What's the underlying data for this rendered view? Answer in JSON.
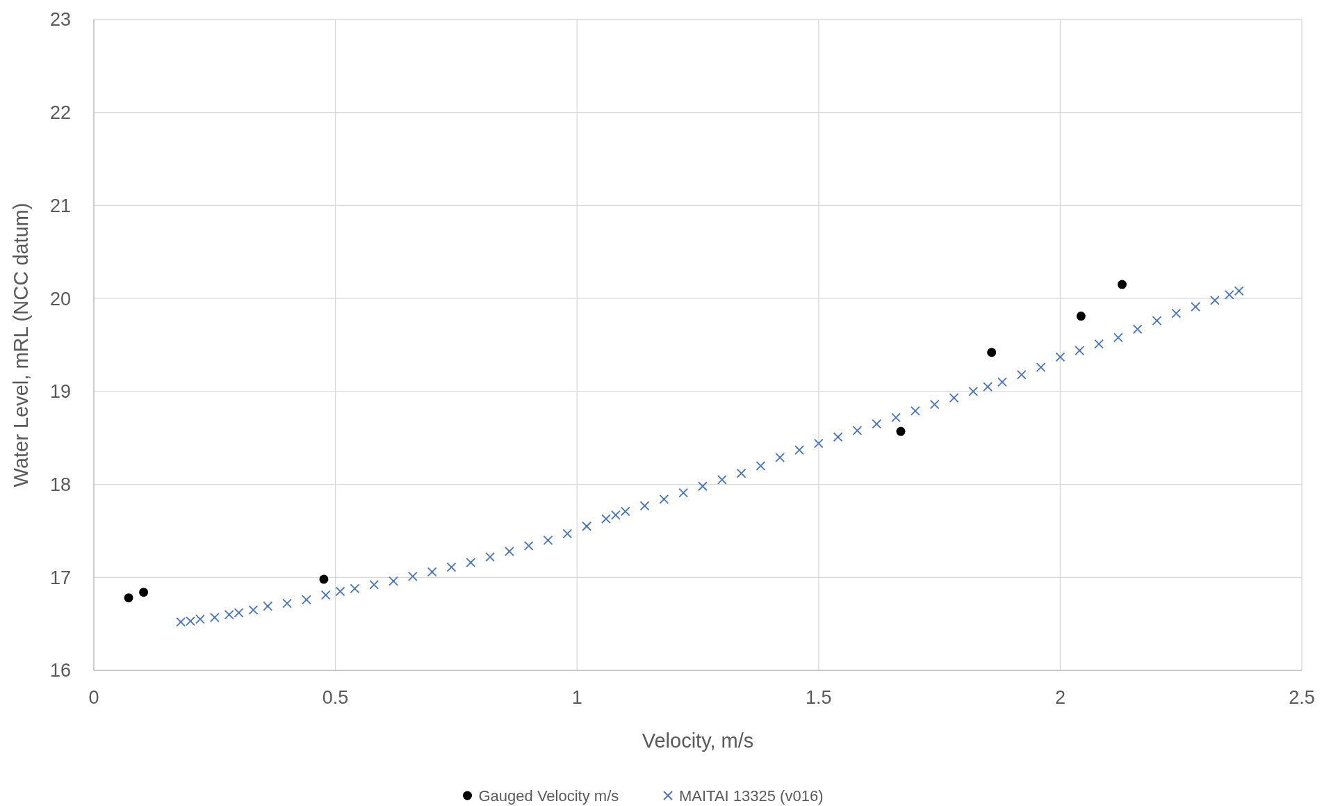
{
  "chart_data": {
    "type": "scatter",
    "xlabel": "Velocity, m/s",
    "ylabel": "Water Level, mRL (NCC datum)",
    "xlim": [
      0,
      2.5
    ],
    "xticks": [
      0,
      0.5,
      1,
      1.5,
      2,
      2.5
    ],
    "ylim": [
      16,
      23
    ],
    "yticks": [
      16,
      17,
      18,
      19,
      20,
      21,
      22,
      23
    ],
    "grid": true,
    "legend": "bottom",
    "series": [
      {
        "name": "Gauged Velocity m/s",
        "color": "#000000",
        "marker": "circle",
        "x": [
          0.072,
          0.103,
          0.476,
          1.67,
          1.858,
          2.043,
          2.128
        ],
        "values": [
          16.78,
          16.84,
          16.98,
          18.57,
          19.42,
          19.81,
          20.15
        ]
      },
      {
        "name": "MAITAI 13325 (v016)",
        "color": "#4472c4",
        "marker": "cross",
        "x": [
          0.18,
          0.2,
          0.22,
          0.25,
          0.28,
          0.3,
          0.33,
          0.36,
          0.4,
          0.44,
          0.48,
          0.51,
          0.54,
          0.58,
          0.62,
          0.66,
          0.7,
          0.74,
          0.78,
          0.82,
          0.86,
          0.9,
          0.94,
          0.98,
          1.02,
          1.06,
          1.08,
          1.1,
          1.14,
          1.18,
          1.22,
          1.26,
          1.3,
          1.34,
          1.38,
          1.42,
          1.46,
          1.5,
          1.54,
          1.58,
          1.62,
          1.66,
          1.7,
          1.74,
          1.78,
          1.82,
          1.85,
          1.88,
          1.92,
          1.96,
          2.0,
          2.04,
          2.08,
          2.12,
          2.16,
          2.2,
          2.24,
          2.28,
          2.32,
          2.35,
          2.37
        ],
        "values": [
          16.52,
          16.53,
          16.55,
          16.57,
          16.6,
          16.62,
          16.65,
          16.69,
          16.72,
          16.76,
          16.81,
          16.85,
          16.88,
          16.92,
          16.96,
          17.01,
          17.06,
          17.11,
          17.16,
          17.22,
          17.28,
          17.34,
          17.4,
          17.47,
          17.55,
          17.63,
          17.67,
          17.71,
          17.77,
          17.84,
          17.91,
          17.98,
          18.05,
          18.12,
          18.2,
          18.29,
          18.37,
          18.44,
          18.51,
          18.58,
          18.65,
          18.72,
          18.79,
          18.86,
          18.93,
          19.0,
          19.05,
          19.1,
          19.18,
          19.26,
          19.37,
          19.44,
          19.51,
          19.58,
          19.67,
          19.76,
          19.84,
          19.91,
          19.98,
          20.04,
          20.08
        ]
      }
    ]
  }
}
